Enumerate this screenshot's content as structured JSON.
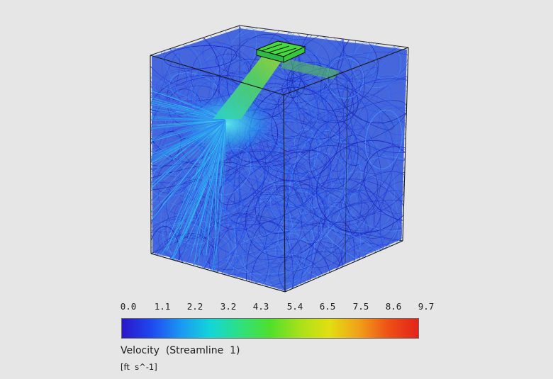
{
  "legend": {
    "title": "Velocity  (Streamline  1)",
    "unit": "[ft  s^-1]",
    "ticks": [
      "0.0",
      "1.1",
      "2.2",
      "3.2",
      "4.3",
      "5.4",
      "6.5",
      "7.5",
      "8.6",
      "9.7"
    ],
    "colormap": [
      "#2a16c8",
      "#1f49f0",
      "#1a98f2",
      "#13d6d8",
      "#2ee07f",
      "#4fe02c",
      "#a8e01a",
      "#e2df12",
      "#f0a019",
      "#ee5016",
      "#e3221a"
    ]
  }
}
